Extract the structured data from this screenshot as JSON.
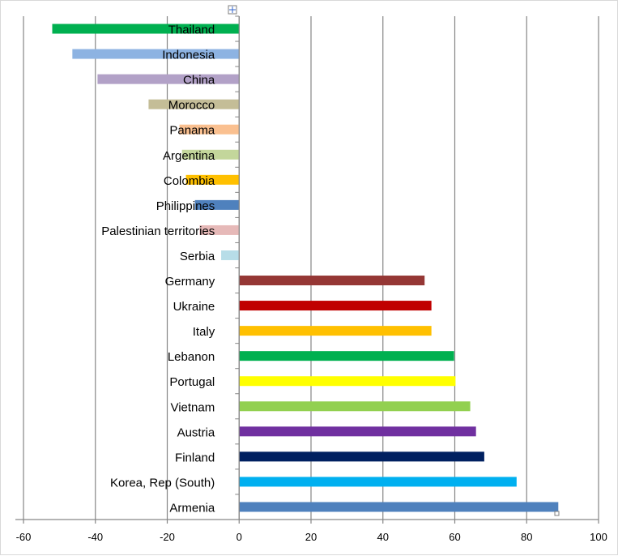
{
  "chart_data": {
    "type": "bar",
    "orientation": "horizontal",
    "title": "",
    "xlabel": "",
    "ylabel": "",
    "xlim": [
      -60,
      100
    ],
    "x_ticks": [
      -60,
      -40,
      -20,
      0,
      20,
      40,
      60,
      80,
      100
    ],
    "grid": "vertical major gridlines",
    "legend": "none",
    "categories": [
      "Thailand",
      "Indonesia",
      "China",
      "Morocco",
      "Panama",
      "Argentina",
      "Colombia",
      "Philippines",
      "Palestinian territories",
      "Serbia",
      "Germany",
      "Ukraine",
      "Italy",
      "Lebanon",
      "Portugal",
      "Vietnam",
      "Austria",
      "Finland",
      "Korea, Rep (South)",
      "Armenia"
    ],
    "values": [
      -52,
      -46.4,
      -39.4,
      -25.2,
      -16.6,
      -15.9,
      -14.8,
      -12.3,
      -11,
      -5,
      51.6,
      53.5,
      53.5,
      59.8,
      60.2,
      64.3,
      65.9,
      68.2,
      77.2,
      88.8
    ],
    "colors": [
      "#00b050",
      "#8db3e2",
      "#b2a1c7",
      "#c4bd97",
      "#fac090",
      "#c3d69b",
      "#ffc000",
      "#4f81bd",
      "#e6b9b8",
      "#b7dde8",
      "#953735",
      "#c00000",
      "#ffc000",
      "#00b050",
      "#ffff00",
      "#92d050",
      "#7030a0",
      "#002060",
      "#00b0f0",
      "#4f81bd"
    ]
  }
}
